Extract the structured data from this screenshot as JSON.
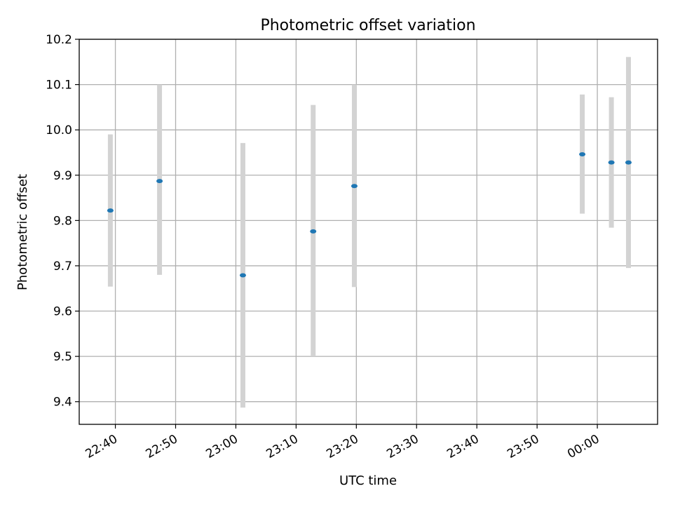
{
  "chart_data": {
    "type": "scatter",
    "title": "Photometric offset variation",
    "xlabel": "UTC time",
    "ylabel": "Photometric offset",
    "grid": true,
    "ylim": [
      9.35,
      10.2
    ],
    "xlim": [
      "22:34",
      "00:10"
    ],
    "x_ticks": [
      "22:40",
      "22:50",
      "23:00",
      "23:10",
      "23:20",
      "23:30",
      "23:40",
      "23:50",
      "00:00"
    ],
    "y_ticks": [
      "9.4",
      "9.5",
      "9.6",
      "9.7",
      "9.8",
      "9.9",
      "10.0",
      "10.1",
      "10.2"
    ],
    "colors": {
      "point": "#1f77b4",
      "errorbar": "#d3d3d3"
    },
    "points": [
      {
        "x": "22:39:10",
        "y": 9.822,
        "y_low": 9.654,
        "y_high": 9.99
      },
      {
        "x": "22:47:20",
        "y": 9.887,
        "y_low": 9.68,
        "y_high": 10.1
      },
      {
        "x": "23:01:10",
        "y": 9.679,
        "y_low": 9.387,
        "y_high": 9.971
      },
      {
        "x": "23:12:50",
        "y": 9.776,
        "y_low": 9.5,
        "y_high": 10.055
      },
      {
        "x": "23:19:40",
        "y": 9.876,
        "y_low": 9.653,
        "y_high": 10.1
      },
      {
        "x": "23:57:30",
        "y": 9.946,
        "y_low": 9.815,
        "y_high": 10.078
      },
      {
        "x": "00:02:20",
        "y": 9.928,
        "y_low": 9.784,
        "y_high": 10.072
      },
      {
        "x": "00:05:10",
        "y": 9.928,
        "y_low": 9.695,
        "y_high": 10.161
      }
    ]
  }
}
